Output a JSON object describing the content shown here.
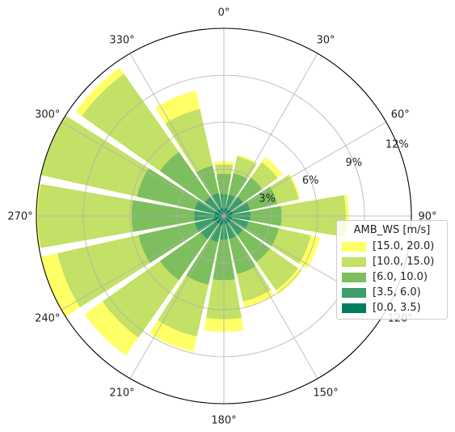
{
  "chart_data": {
    "type": "windrose",
    "angular_ticks": [
      "0°",
      "30°",
      "60°",
      "90°",
      "120°",
      "150°",
      "180°",
      "210°",
      "240°",
      "270°",
      "300°",
      "330°"
    ],
    "radial_ticks": [
      "3%",
      "6%",
      "9%",
      "12%"
    ],
    "rmax": 12,
    "directions_deg": [
      0,
      22.5,
      45,
      67.5,
      90,
      112.5,
      135,
      157.5,
      180,
      202.5,
      225,
      247.5,
      270,
      292.5,
      315,
      337.5
    ],
    "legend_title": "AMB_WS [m/s]",
    "series": [
      {
        "name": "[0.0, 3.5)",
        "color": "#007f5f",
        "values": [
          0.5,
          0.5,
          0.5,
          0.6,
          0.5,
          0.5,
          0.5,
          0.5,
          0.5,
          0.6,
          0.6,
          0.7,
          0.6,
          0.6,
          0.5,
          0.5
        ]
      },
      {
        "name": "[3.5, 6.0)",
        "color": "#3d9e6a",
        "values": [
          0.9,
          0.9,
          1.0,
          1.1,
          1.2,
          1.1,
          1.0,
          1.0,
          1.0,
          1.1,
          1.2,
          1.2,
          1.3,
          1.3,
          1.0,
          1.0
        ]
      },
      {
        "name": "[6.0, 10.0)",
        "color": "#7dbe5e",
        "values": [
          1.3,
          1.4,
          1.5,
          1.8,
          2.0,
          2.0,
          2.1,
          2.3,
          2.6,
          2.8,
          3.2,
          3.7,
          4.0,
          3.8,
          3.5,
          1.8
        ]
      },
      {
        "name": "[10.0, 15.0)",
        "color": "#c3e067",
        "values": [
          0.6,
          1.1,
          1.2,
          1.4,
          4.1,
          2.1,
          2.2,
          1.8,
          2.5,
          3.4,
          4.5,
          5.3,
          6.0,
          6.3,
          6.1,
          3.7
        ]
      },
      {
        "name": "[15.0, 20.0)",
        "color": "#ffff66",
        "values": [
          0.2,
          0.1,
          0.4,
          0.1,
          0.2,
          0.6,
          0.3,
          0.4,
          0.8,
          1.0,
          1.4,
          1.7,
          1.7,
          1.5,
          0.5,
          1.2
        ]
      }
    ]
  }
}
